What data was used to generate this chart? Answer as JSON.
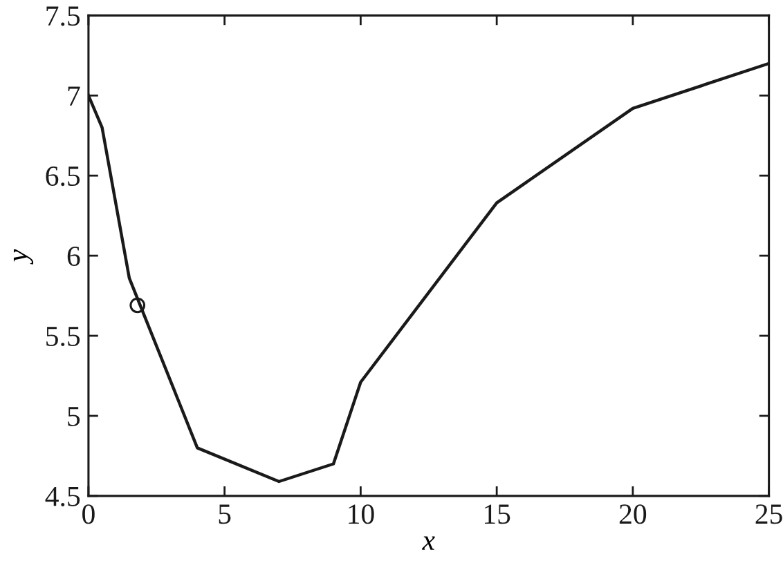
{
  "chart_data": {
    "type": "line",
    "xlabel": "x",
    "ylabel": "y",
    "series": [
      {
        "color": "#1a1a1a",
        "marker": "none",
        "line_style": "solid",
        "x": [
          0,
          0.5,
          1.5,
          4,
          7,
          9,
          10,
          15,
          20,
          25
        ],
        "values": [
          7.0,
          6.8,
          5.86,
          4.8,
          4.59,
          4.7,
          5.21,
          6.33,
          6.92,
          7.2
        ]
      },
      {
        "type": "scatter",
        "color": "#1a1a1a",
        "marker": "circle",
        "x": [
          1.8
        ],
        "values": [
          5.69
        ]
      }
    ],
    "xlim": [
      0,
      25
    ],
    "ylim": [
      4.5,
      7.5
    ],
    "xticks": [
      0,
      5,
      10,
      15,
      20,
      25
    ],
    "yticks": [
      4.5,
      5,
      5.5,
      6,
      6.5,
      7,
      7.5
    ],
    "grid": false,
    "legend": false
  }
}
